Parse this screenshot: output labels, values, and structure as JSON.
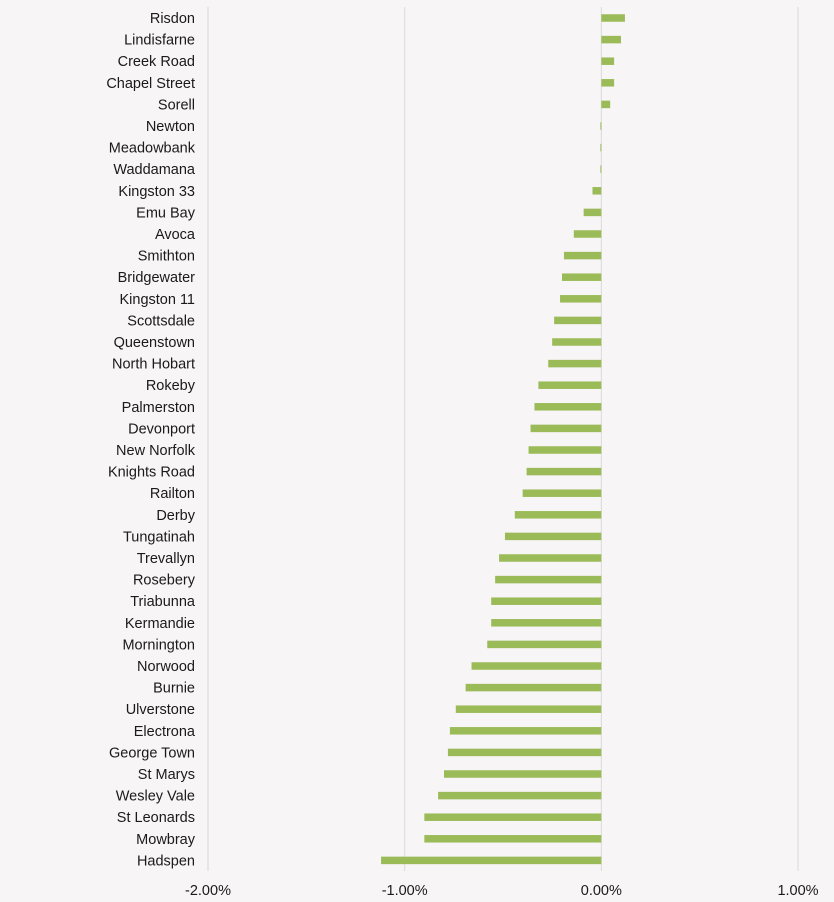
{
  "chart_data": {
    "type": "bar",
    "orientation": "horizontal",
    "title": "",
    "xlabel": "",
    "ylabel": "",
    "xlim": [
      -0.02,
      0.01
    ],
    "x_ticks": [
      -0.02,
      -0.01,
      0.0,
      0.01
    ],
    "x_tick_labels": [
      "-2.00%",
      "-1.00%",
      "0.00%",
      "1.00%"
    ],
    "grid": true,
    "legend": "none",
    "bar_color": "#9bbb59",
    "categories": [
      "Risdon",
      "Lindisfarne",
      "Creek Road",
      "Chapel Street",
      "Sorell",
      "Newton",
      "Meadowbank",
      "Waddamana",
      "Kingston 33",
      "Emu Bay",
      "Avoca",
      "Smithton",
      "Bridgewater",
      "Kingston 11",
      "Scottsdale",
      "Queenstown",
      "North Hobart",
      "Rokeby",
      "Palmerston",
      "Devonport",
      "New Norfolk",
      "Knights Road",
      "Railton",
      "Derby",
      "Tungatinah",
      "Trevallyn",
      "Rosebery",
      "Triabunna",
      "Kermandie",
      "Mornington",
      "Norwood",
      "Burnie",
      "Ulverstone",
      "Electrona",
      "George Town",
      "St Marys",
      "Wesley Vale",
      "St Leonards",
      "Mowbray",
      "Hadspen"
    ],
    "values": [
      0.0012,
      0.001,
      0.00065,
      0.00065,
      0.00045,
      -5e-05,
      -5e-05,
      -5e-05,
      -0.00045,
      -0.0009,
      -0.0014,
      -0.0019,
      -0.002,
      -0.0021,
      -0.0024,
      -0.0025,
      -0.0027,
      -0.0032,
      -0.0034,
      -0.0036,
      -0.0037,
      -0.0038,
      -0.004,
      -0.0044,
      -0.0049,
      -0.0052,
      -0.0054,
      -0.0056,
      -0.0056,
      -0.0058,
      -0.0066,
      -0.0069,
      -0.0074,
      -0.0077,
      -0.0078,
      -0.008,
      -0.0083,
      -0.009,
      -0.009,
      -0.0112
    ]
  }
}
